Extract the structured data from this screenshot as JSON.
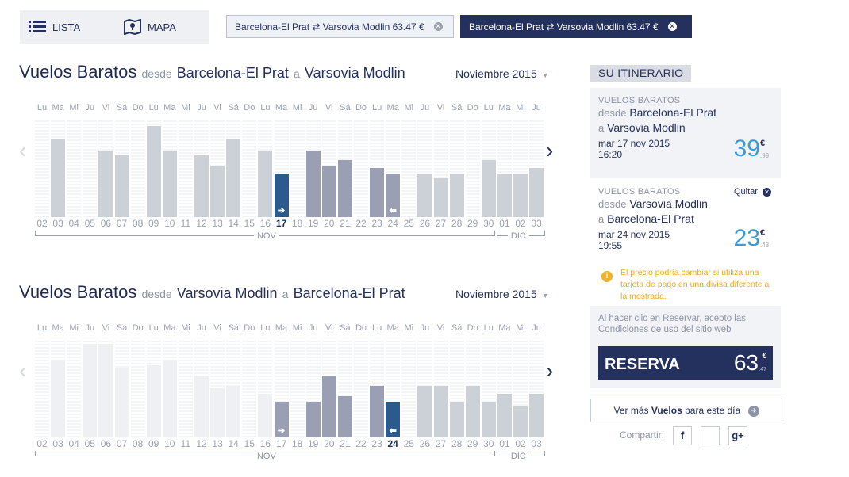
{
  "view_tabs": {
    "list": "LISTA",
    "map": "MAPA"
  },
  "route_chips": [
    {
      "label": "Barcelona-El Prat ⇄ Varsovia Modlin 63.47 €",
      "active": false
    },
    {
      "label": "Barcelona-El Prat ⇄ Varsovia Modlin 63.47 €",
      "active": true
    }
  ],
  "calendars": [
    {
      "title": "Vuelos Baratos",
      "from_word": "desde",
      "from": "Barcelona-El Prat",
      "to_word": "a",
      "to": "Varsovia Modlin",
      "month_select": "Noviembre 2015",
      "day_names": [
        "Lu",
        "Ma",
        "Mi",
        "Ju",
        "Vi",
        "Sá",
        "Do",
        "Lu",
        "Ma",
        "Mi",
        "Ju",
        "Vi",
        "Sá",
        "Do",
        "Lu",
        "Ma",
        "Mi",
        "Ju",
        "Vi",
        "Sá",
        "Do",
        "Lu",
        "Ma",
        "Mi",
        "Ju",
        "Vi",
        "Sá",
        "Do",
        "Lu",
        "Ma",
        "Mi",
        "Ju"
      ],
      "dates": [
        "02",
        "03",
        "04",
        "05",
        "06",
        "07",
        "08",
        "09",
        "10",
        "11",
        "12",
        "13",
        "14",
        "15",
        "16",
        "17",
        "18",
        "19",
        "20",
        "21",
        "22",
        "23",
        "24",
        "25",
        "26",
        "27",
        "28",
        "29",
        "30",
        "01",
        "02",
        "03"
      ],
      "bar_levels": [
        0,
        100,
        0,
        0,
        86,
        80,
        0,
        117,
        86,
        0,
        80,
        66,
        100,
        0,
        86,
        56,
        0,
        86,
        66,
        73,
        0,
        63,
        56,
        0,
        56,
        50,
        56,
        0,
        73,
        56,
        56,
        63
      ],
      "bar_states": [
        "empty",
        "light",
        "empty",
        "empty",
        "light",
        "light",
        "empty",
        "light",
        "light",
        "empty",
        "light",
        "light",
        "light",
        "empty",
        "light",
        "selected",
        "empty",
        "mid",
        "mid",
        "mid",
        "empty",
        "mid",
        "mid",
        "empty",
        "light",
        "light",
        "light",
        "empty",
        "light",
        "light",
        "light",
        "light"
      ],
      "selected_index": 15,
      "return_index": 22,
      "months": [
        "NOV",
        "DIC"
      ]
    },
    {
      "title": "Vuelos Baratos",
      "from_word": "desde",
      "from": "Varsovia Modlin",
      "to_word": "a",
      "to": "Barcelona-El Prat",
      "month_select": "Noviembre 2015",
      "day_names": [
        "Lu",
        "Ma",
        "Mi",
        "Ju",
        "Vi",
        "Sá",
        "Do",
        "Lu",
        "Ma",
        "Mi",
        "Ju",
        "Vi",
        "Sá",
        "Do",
        "Lu",
        "Ma",
        "Mi",
        "Ju",
        "Vi",
        "Sá",
        "Do",
        "Lu",
        "Ma",
        "Mi",
        "Ju",
        "Vi",
        "Sá",
        "Do",
        "Lu",
        "Ma",
        "Mi",
        "Ju"
      ],
      "dates": [
        "02",
        "03",
        "04",
        "05",
        "06",
        "07",
        "08",
        "09",
        "10",
        "11",
        "12",
        "13",
        "14",
        "15",
        "16",
        "17",
        "18",
        "19",
        "20",
        "21",
        "22",
        "23",
        "24",
        "25",
        "26",
        "27",
        "28",
        "29",
        "30",
        "01",
        "02",
        "03"
      ],
      "bar_levels": [
        0,
        100,
        0,
        120,
        120,
        90,
        0,
        93,
        100,
        0,
        80,
        63,
        66,
        0,
        56,
        0,
        0,
        0,
        0,
        0,
        0,
        0,
        0,
        0,
        66,
        66,
        46,
        66,
        46,
        56,
        40,
        56
      ],
      "bar_states": [
        "empty",
        "faint",
        "empty",
        "faint",
        "faint",
        "faint",
        "empty",
        "faint",
        "faint",
        "empty",
        "faint",
        "faint",
        "faint",
        "empty",
        "faint",
        "mid",
        "empty",
        "mid",
        "mid",
        "mid",
        "empty",
        "mid",
        "selected",
        "empty",
        "light",
        "light",
        "light",
        "light",
        "light",
        "light",
        "light",
        "light"
      ],
      "bar_levels_overrides": {
        "15": 46,
        "17": 46,
        "18": 80,
        "19": 53,
        "21": 66,
        "22": 46
      },
      "selected_index": 22,
      "out_index": 15,
      "months": [
        "NOV",
        "DIC"
      ]
    }
  ],
  "itinerary": {
    "header": "SU ITINERARIO",
    "outbound": {
      "kicker": "VUELOS BARATOS",
      "from_word": "desde",
      "from": "Barcelona-El Prat",
      "to_word": "a",
      "to": "Varsovia Modlin",
      "date": "mar 17 nov 2015",
      "time": "16:20",
      "price": "39",
      "currency": "€",
      "cents": ".99"
    },
    "inbound": {
      "kicker": "VUELOS BARATOS",
      "remove": "Quitar",
      "from_word": "desde",
      "from": "Varsovia Modlin",
      "to_word": "a",
      "to": "Barcelona-El Prat",
      "date": "mar 24 nov 2015",
      "time": "19:55",
      "price": "23",
      "currency": "€",
      "cents": ".48"
    },
    "warning": "El precio podría cambiar si utiliza una tarjeta de pago en una divisa diferente a la mostrada.",
    "terms": "Al hacer clic en Reservar, acepto las Condiciones de uso del sitio web",
    "reserve_label": "RESERVA",
    "reserve_price": "63",
    "reserve_currency": "€",
    "reserve_cents": ".47",
    "more_prefix": "Ver más",
    "more_bold": "Vuelos",
    "more_suffix": "para este día",
    "share_label": "Compartir:",
    "share_buttons": [
      "f",
      "",
      "g+"
    ]
  },
  "colors": {
    "navy": "#24305e",
    "selected": "#2b5a8c",
    "mid": "#9a9fb3",
    "light": "#ccd1d8",
    "faint": "#eef0f3",
    "price": "#3b9bd6",
    "warning": "#f2a91c"
  }
}
